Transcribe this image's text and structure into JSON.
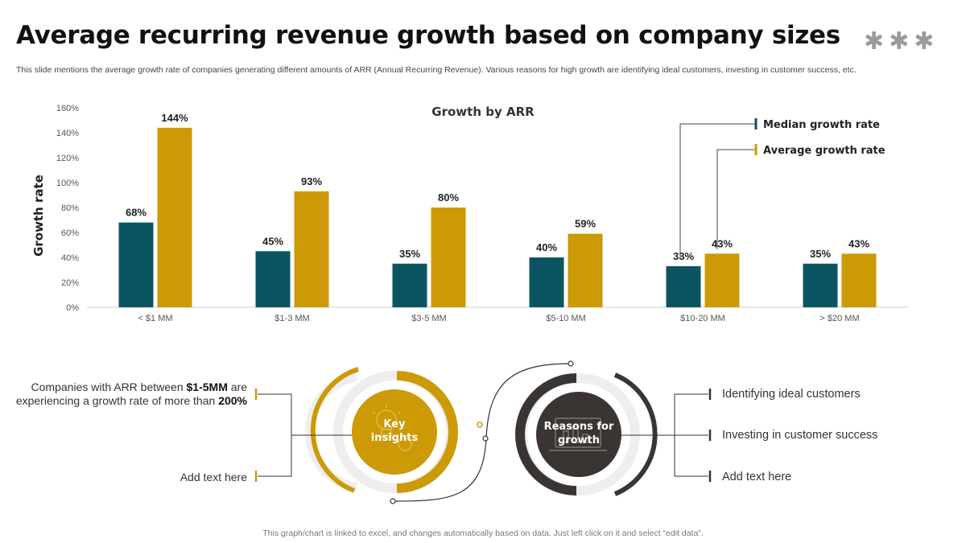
{
  "title": "Average recurring revenue growth based on company sizes",
  "stars": "✱✱✱",
  "subtitle": "This slide mentions the average growth rate of companies generating different amounts of ARR (Annual Recurring Revenue). Various reasons for high growth are identifying ideal customers, investing in customer success, etc.",
  "footer": "This graph/chart is linked to excel,  and changes automatically based on data. Just left click on it and select “edit data”.",
  "colors": {
    "median": "#0b5563",
    "average": "#cc9a06",
    "dark": "#3a3533",
    "ring_light": "#eeeeee"
  },
  "chart_data": {
    "type": "bar",
    "title": "Growth by ARR",
    "ylabel": "Growth rate",
    "xlabel": "",
    "ylim": [
      0,
      160
    ],
    "yticks": [
      "0%",
      "20%",
      "40%",
      "60%",
      "80%",
      "100%",
      "120%",
      "140%",
      "160%"
    ],
    "categories": [
      "< $1 MM",
      "$1-3 MM",
      "$3-5 MM",
      "$5-10 MM",
      "$10-20 MM",
      "> $20 MM"
    ],
    "series": [
      {
        "name": "Median growth rate",
        "values": [
          68,
          45,
          35,
          40,
          33,
          35
        ],
        "labels": [
          "68%",
          "45%",
          "35%",
          "40%",
          "33%",
          "35%"
        ]
      },
      {
        "name": "Average growth rate",
        "values": [
          144,
          93,
          80,
          59,
          43,
          43
        ],
        "labels": [
          "144%",
          "93%",
          "80%",
          "59%",
          "43%",
          "43%"
        ]
      }
    ]
  },
  "insights": {
    "circle_label": "Key insights",
    "item1_prefix": "Companies with ARR between ",
    "item1_bold1": "$1-5MM",
    "item1_mid": " are",
    "item1_line2": "experiencing a growth rate of more than ",
    "item1_bold2": "200%",
    "item2": "Add text here"
  },
  "reasons": {
    "circle_label": "Reasons for growth",
    "items": [
      "Identifying  ideal customers",
      "Investing  in customer success",
      "Add text here"
    ]
  }
}
